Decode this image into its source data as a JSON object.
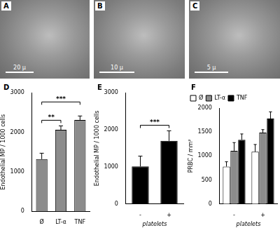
{
  "images": [
    {
      "label": "A",
      "scale_bar": "20 µ"
    },
    {
      "label": "B",
      "scale_bar": "10 µ"
    },
    {
      "label": "C",
      "scale_bar": "5 µ"
    }
  ],
  "chart_data": [
    {
      "type": "bar",
      "panel": "D",
      "y_label": "Endothelial MP / 1000 cells",
      "categories": [
        "Ø",
        "LT-α",
        "TNF"
      ],
      "values": [
        1320,
        2060,
        2310
      ],
      "errors": [
        150,
        100,
        100
      ],
      "color": "#8c8c8c",
      "ylim": [
        0,
        3000
      ],
      "yticks": [
        0,
        1000,
        2000,
        3000
      ],
      "grid": false,
      "significance": [
        {
          "from": 0,
          "to": 1,
          "label": "**"
        },
        {
          "from": 0,
          "to": 2,
          "label": "***"
        }
      ]
    },
    {
      "type": "bar",
      "panel": "E",
      "y_label": "Endothelial MP / 1000 cells",
      "x_label": "platelets",
      "categories": [
        "-",
        "+"
      ],
      "values": [
        1010,
        1700
      ],
      "errors": [
        280,
        270
      ],
      "color": "#000000",
      "ylim": [
        0,
        3000
      ],
      "yticks": [
        0,
        1000,
        2000,
        3000
      ],
      "grid": false,
      "significance": [
        {
          "from": 0,
          "to": 1,
          "label": "***"
        }
      ]
    },
    {
      "type": "bar",
      "panel": "F",
      "y_label": "PRBC / mm²",
      "x_label": "platelets",
      "categories": [
        "-",
        "+"
      ],
      "legend": "upper left",
      "series": [
        {
          "name": "Ø",
          "color": "#ffffff",
          "values": [
            780,
            1090
          ],
          "errors": [
            100,
            150
          ]
        },
        {
          "name": "LT-α",
          "color": "#8c8c8c",
          "values": [
            1110,
            1490
          ],
          "errors": [
            170,
            60
          ]
        },
        {
          "name": "TNF",
          "color": "#000000",
          "values": [
            1340,
            1780
          ],
          "errors": [
            120,
            140
          ]
        }
      ],
      "ylim": [
        0,
        2000
      ],
      "yticks": [
        0,
        500,
        1000,
        1500,
        2000
      ],
      "grid": false
    }
  ]
}
